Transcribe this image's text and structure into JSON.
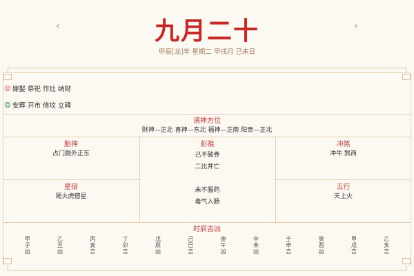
{
  "header": {
    "prev": "‹",
    "next": "›",
    "title": "九月二十",
    "subtitle": "甲辰[龙]年 星期二 甲戌月 己未日"
  },
  "yi": {
    "icon": "宜",
    "items": "嫁娶 祭祀 作灶 纳财",
    "color": "#e07a7a"
  },
  "ji": {
    "icon": "忌",
    "items": "安葬 开市 修坟 立碑",
    "color": "#5a9a5a"
  },
  "gods": {
    "title": "诸神方位",
    "text": "财神—正北 喜神—东北 福神—正南 阳贵—正北"
  },
  "taishen": {
    "title": "胎神",
    "text": "占门厕外正东"
  },
  "pengzu": {
    "title": "彭祖",
    "lines": [
      "己不破券",
      "二比并亡",
      "未不服药",
      "毒气入肠"
    ]
  },
  "chongsha": {
    "title": "冲煞",
    "text": "冲牛 煞西"
  },
  "xingxiu": {
    "title": "星宿",
    "text": "尾火虎宿星"
  },
  "wuxing": {
    "title": "五行",
    "text": "天上火"
  },
  "hours": {
    "title": "时辰吉凶",
    "items": [
      "甲子凶",
      "乙丑凶",
      "丙寅吉",
      "丁卯吉",
      "戊辰凶",
      "己巳吉",
      "庚午凶",
      "辛未凶",
      "壬申吉",
      "癸酉凶",
      "甲戌吉",
      "乙亥吉"
    ]
  }
}
